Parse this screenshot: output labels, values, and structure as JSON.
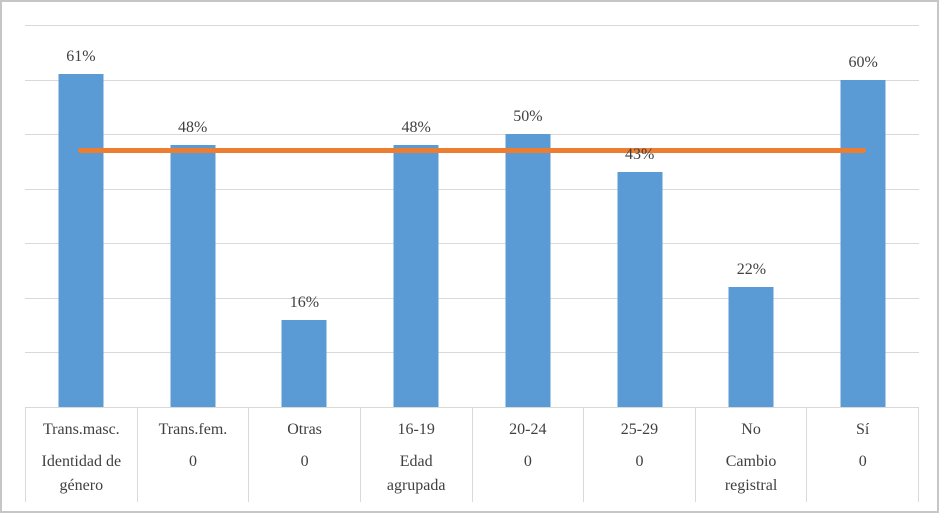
{
  "chart_data": {
    "type": "bar",
    "title": "",
    "xlabel": "",
    "ylabel": "",
    "categories": [
      "Trans.masc.",
      "Trans.fem.",
      "Otras",
      "16-19",
      "20-24",
      "25-29",
      "No",
      "Sí"
    ],
    "group_labels": [
      "Identidad de\ngénero",
      "0",
      "0",
      "Edad\nagrupada",
      "0",
      "0",
      "Cambio\nregistral",
      "0"
    ],
    "values": [
      61,
      48,
      16,
      48,
      50,
      43,
      22,
      60
    ],
    "data_labels": [
      "61%",
      "48%",
      "16%",
      "48%",
      "50%",
      "43%",
      "22%",
      "60%"
    ],
    "ylim": [
      0,
      70
    ],
    "gridline_step": 10,
    "grid": true,
    "legend": "none",
    "y_axis_labels_visible": false,
    "reference_line": {
      "value": 47,
      "extent": "first-category-center-to-last-category-center",
      "color": "#ED7D31"
    },
    "colors": {
      "bar": "#5B9BD5",
      "reference_line": "#ED7D31",
      "gridline": "#D9D9D9",
      "axis_line": "#D9D9D9",
      "text": "#404040",
      "outer_border": "#C6C6C6",
      "background": "#FFFFFF"
    }
  }
}
